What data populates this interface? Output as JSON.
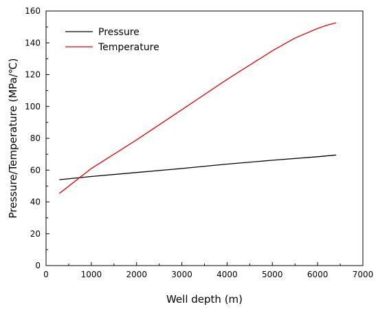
{
  "chart_data": {
    "type": "line",
    "title": "",
    "xlabel": "Well depth (m)",
    "ylabel": "Pressure/Temperature (MPa/℃)",
    "xlim": [
      0,
      7000
    ],
    "ylim": [
      0,
      160
    ],
    "x_ticks": [
      0,
      1000,
      2000,
      3000,
      4000,
      5000,
      6000,
      7000
    ],
    "y_ticks": [
      0,
      20,
      40,
      60,
      80,
      100,
      120,
      140,
      160
    ],
    "grid": false,
    "legend_position": "top-left",
    "series": [
      {
        "name": "Pressure",
        "color": "#000000",
        "x": [
          300,
          1000,
          2000,
          3000,
          4000,
          5000,
          6000,
          6400
        ],
        "y": [
          54,
          56,
          58.5,
          61,
          63.8,
          66.2,
          68.4,
          69.5
        ]
      },
      {
        "name": "Temperature",
        "color": "#e60000",
        "x": [
          300,
          1000,
          2000,
          3000,
          4000,
          4500,
          5000,
          5500,
          6000,
          6200,
          6400
        ],
        "y": [
          45.5,
          61,
          79,
          98,
          117,
          126,
          135,
          143,
          149,
          151,
          152.5
        ]
      }
    ]
  }
}
